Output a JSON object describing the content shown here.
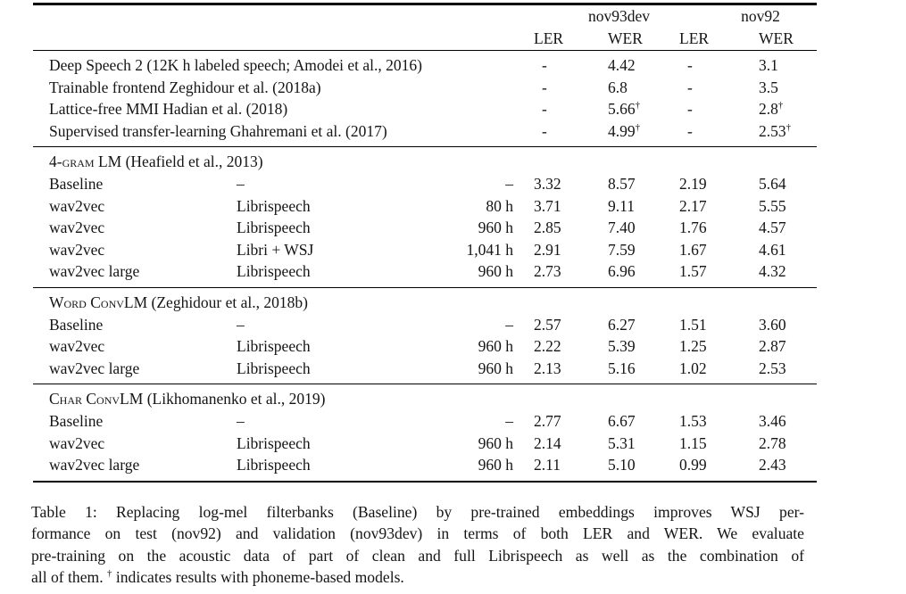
{
  "colors": {
    "background": "#ffffff",
    "text": "#151515",
    "rule": "#000000"
  },
  "table": {
    "dagger_symbol": "†",
    "group_headers": [
      {
        "label": "nov93dev"
      },
      {
        "label": "nov92"
      }
    ],
    "subheaders": [
      "LER",
      "WER",
      "LER",
      "WER"
    ],
    "sections": [
      {
        "title": null,
        "rows": [
          {
            "model": "Deep Speech 2 (12K h labeled speech; Amodei et al., 2016)",
            "data": "",
            "hours": "",
            "values": [
              "-",
              "4.42",
              "-",
              "3.1"
            ],
            "daggers": [
              false,
              false,
              false,
              false
            ]
          },
          {
            "model": "Trainable frontend Zeghidour et al. (2018a)",
            "data": "",
            "hours": "",
            "values": [
              "-",
              "6.8",
              "-",
              "3.5"
            ],
            "daggers": [
              false,
              false,
              false,
              false
            ]
          },
          {
            "model": "Lattice-free MMI Hadian et al. (2018)",
            "data": "",
            "hours": "",
            "values": [
              "-",
              "5.66",
              "-",
              "2.8"
            ],
            "daggers": [
              false,
              true,
              false,
              true
            ]
          },
          {
            "model": "Supervised transfer-learning Ghahremani et al. (2017)",
            "data": "",
            "hours": "",
            "values": [
              "-",
              "4.99",
              "-",
              "2.53"
            ],
            "daggers": [
              false,
              true,
              false,
              true
            ]
          }
        ]
      },
      {
        "title": {
          "smallcaps": "4-gram LM",
          "normal": " (Heafield et al., 2013)"
        },
        "rows": [
          {
            "model": "Baseline",
            "data": "–",
            "hours": "–",
            "values": [
              "3.32",
              "8.57",
              "2.19",
              "5.64"
            ]
          },
          {
            "model": "wav2vec",
            "data": "Librispeech",
            "hours": "80 h",
            "values": [
              "3.71",
              "9.11",
              "2.17",
              "5.55"
            ]
          },
          {
            "model": "wav2vec",
            "data": "Librispeech",
            "hours": "960 h",
            "values": [
              "2.85",
              "7.40",
              "1.76",
              "4.57"
            ]
          },
          {
            "model": "wav2vec",
            "data": "Libri + WSJ",
            "hours": "1,041 h",
            "values": [
              "2.91",
              "7.59",
              "1.67",
              "4.61"
            ]
          },
          {
            "model": "wav2vec large",
            "data": "Librispeech",
            "hours": "960 h",
            "values": [
              "2.73",
              "6.96",
              "1.57",
              "4.32"
            ]
          }
        ]
      },
      {
        "title": {
          "smallcaps": "Word ConvLM",
          "normal": " (Zeghidour et al., 2018b)"
        },
        "rows": [
          {
            "model": "Baseline",
            "data": "–",
            "hours": "–",
            "values": [
              "2.57",
              "6.27",
              "1.51",
              "3.60"
            ]
          },
          {
            "model": "wav2vec",
            "data": "Librispeech",
            "hours": "960 h",
            "values": [
              "2.22",
              "5.39",
              "1.25",
              "2.87"
            ]
          },
          {
            "model": "wav2vec large",
            "data": "Librispeech",
            "hours": "960 h",
            "values": [
              "2.13",
              "5.16",
              "1.02",
              "2.53"
            ]
          }
        ]
      },
      {
        "title": {
          "smallcaps": "Char ConvLM",
          "normal": " (Likhomanenko et al., 2019)"
        },
        "rows": [
          {
            "model": "Baseline",
            "data": "–",
            "hours": "–",
            "values": [
              "2.77",
              "6.67",
              "1.53",
              "3.46"
            ]
          },
          {
            "model": "wav2vec",
            "data": "Librispeech",
            "hours": "960 h",
            "values": [
              "2.14",
              "5.31",
              "1.15",
              "2.78"
            ]
          },
          {
            "model": "wav2vec large",
            "data": "Librispeech",
            "hours": "960 h",
            "values": [
              "2.11",
              "5.10",
              "0.99",
              "2.43"
            ]
          }
        ]
      }
    ]
  },
  "caption": {
    "lines": [
      {
        "text": "Table 1: Replacing log-mel filterbanks (Baseline) by pre-trained embeddings improves WSJ per-"
      },
      {
        "text": "formance on test (nov92) and validation (nov93dev) in terms of both LER and WER. We evaluate"
      },
      {
        "text": "pre-training on the acoustic data of part of clean and full Librispeech as well as the combination of"
      },
      {
        "pre": "all of them. ",
        "sup": "†",
        "post": " indicates results with phoneme-based models."
      }
    ]
  }
}
